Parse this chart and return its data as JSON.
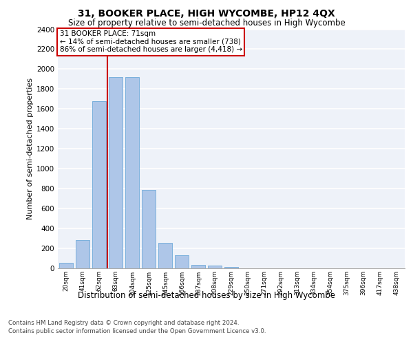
{
  "title": "31, BOOKER PLACE, HIGH WYCOMBE, HP12 4QX",
  "subtitle": "Size of property relative to semi-detached houses in High Wycombe",
  "xlabel": "Distribution of semi-detached houses by size in High Wycombe",
  "ylabel": "Number of semi-detached properties",
  "bar_values": [
    55,
    280,
    1680,
    1920,
    1920,
    785,
    255,
    130,
    35,
    30,
    15,
    0,
    0,
    0,
    0,
    0,
    0,
    0,
    0,
    0,
    0
  ],
  "bar_labels": [
    "20sqm",
    "41sqm",
    "62sqm",
    "83sqm",
    "104sqm",
    "125sqm",
    "145sqm",
    "166sqm",
    "187sqm",
    "208sqm",
    "229sqm",
    "250sqm",
    "271sqm",
    "292sqm",
    "313sqm",
    "334sqm",
    "354sqm",
    "375sqm",
    "396sqm",
    "417sqm",
    "438sqm"
  ],
  "bar_color": "#aec6e8",
  "bar_edge_color": "#5a9fd4",
  "property_line_x": 2.5,
  "property_size": 71,
  "pct_smaller": 14,
  "n_smaller": 738,
  "pct_larger": 86,
  "n_larger": 4418,
  "annotation_box_color": "#cc0000",
  "ylim": [
    0,
    2400
  ],
  "yticks": [
    0,
    200,
    400,
    600,
    800,
    1000,
    1200,
    1400,
    1600,
    1800,
    2000,
    2200,
    2400
  ],
  "footer_line1": "Contains HM Land Registry data © Crown copyright and database right 2024.",
  "footer_line2": "Contains public sector information licensed under the Open Government Licence v3.0.",
  "bg_color": "#eef2f9",
  "grid_color": "#ffffff",
  "title_fontsize": 10,
  "subtitle_fontsize": 8.5,
  "ylabel_fontsize": 8,
  "xlabel_fontsize": 8.5,
  "tick_fontsize": 7.5,
  "xtick_fontsize": 6.5,
  "footer_fontsize": 6.2,
  "annot_fontsize": 7.5
}
